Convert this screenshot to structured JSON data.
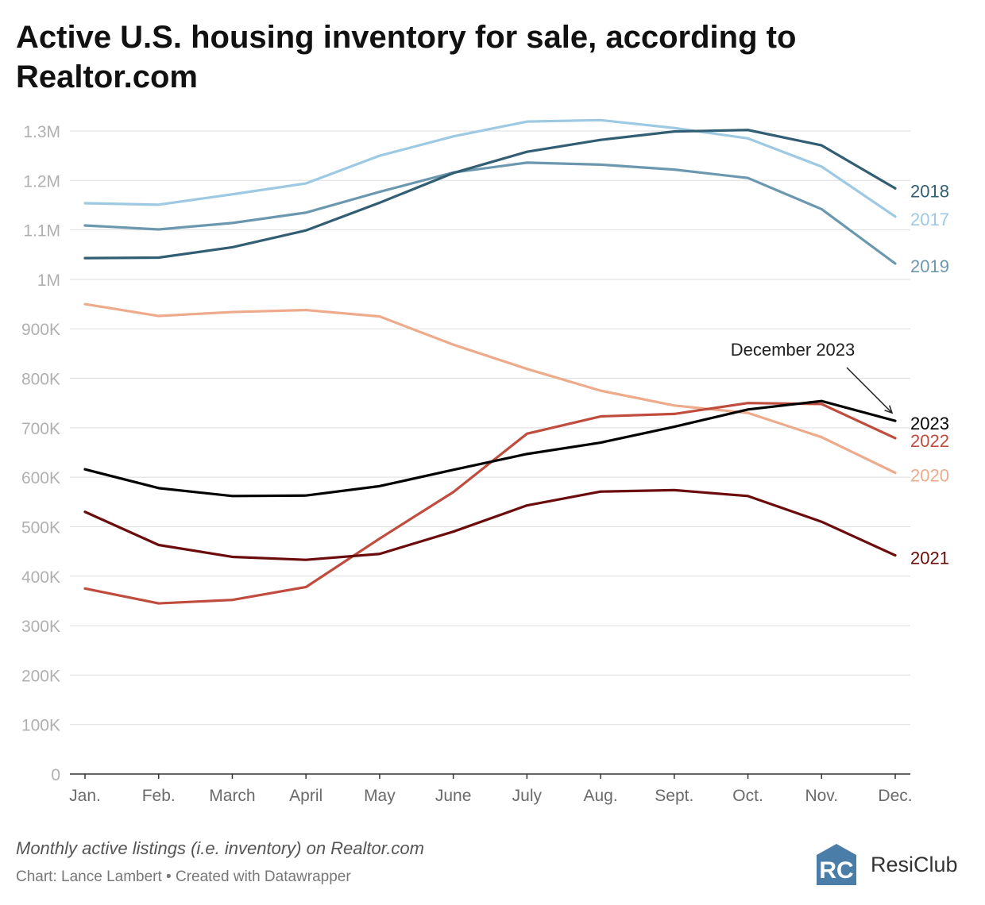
{
  "title": "Active U.S. housing inventory for sale, according to Realtor.com",
  "notes": "Monthly active listings (i.e. inventory) on Realtor.com",
  "credit": "Chart: Lance Lambert • Created with Datawrapper",
  "logo": {
    "mark": "RC",
    "name": "ResiClub",
    "color": "#4a7ea8"
  },
  "chart_data": {
    "type": "line",
    "categories": [
      "Jan.",
      "Feb.",
      "March",
      "April",
      "May",
      "June",
      "July",
      "Aug.",
      "Sept.",
      "Oct.",
      "Nov.",
      "Dec."
    ],
    "ylim": [
      0,
      1300000
    ],
    "yticks": [
      {
        "value": 0,
        "label": "0"
      },
      {
        "value": 100000,
        "label": "100K"
      },
      {
        "value": 200000,
        "label": "200K"
      },
      {
        "value": 300000,
        "label": "300K"
      },
      {
        "value": 400000,
        "label": "400K"
      },
      {
        "value": 500000,
        "label": "500K"
      },
      {
        "value": 600000,
        "label": "600K"
      },
      {
        "value": 700000,
        "label": "700K"
      },
      {
        "value": 800000,
        "label": "800K"
      },
      {
        "value": 900000,
        "label": "900K"
      },
      {
        "value": 1000000,
        "label": "1M"
      },
      {
        "value": 1100000,
        "label": "1.1M"
      },
      {
        "value": 1200000,
        "label": "1.2M"
      },
      {
        "value": 1300000,
        "label": "1.3M"
      }
    ],
    "series": [
      {
        "name": "2017",
        "color": "#9ec9e2",
        "label_offset": 0,
        "values": [
          1154000,
          1151000,
          1172000,
          1194000,
          1250000,
          1289000,
          1319000,
          1322000,
          1306000,
          1285000,
          1228000,
          1127000
        ]
      },
      {
        "name": "2019",
        "color": "#6b98ae",
        "label_offset": 0,
        "values": [
          1109000,
          1101000,
          1114000,
          1135000,
          1177000,
          1216000,
          1236000,
          1232000,
          1222000,
          1205000,
          1142000,
          1032000
        ]
      },
      {
        "name": "2018",
        "color": "#325e73",
        "label_offset": 0,
        "values": [
          1043000,
          1044000,
          1065000,
          1099000,
          1155000,
          1215000,
          1258000,
          1282000,
          1299000,
          1302000,
          1271000,
          1184000
        ]
      },
      {
        "name": "2020",
        "color": "#eeab8c",
        "label_offset": 0,
        "values": [
          950000,
          926000,
          934000,
          938000,
          925000,
          868000,
          819000,
          775000,
          745000,
          730000,
          681000,
          609000
        ]
      },
      {
        "name": "2022",
        "color": "#bf4c3d",
        "label_offset": 0,
        "values": [
          375000,
          345000,
          352000,
          378000,
          476000,
          570000,
          688000,
          723000,
          728000,
          750000,
          748000,
          679000
        ]
      },
      {
        "name": "2021",
        "color": "#6b0b0b",
        "label_offset": 0,
        "values": [
          530000,
          463000,
          439000,
          433000,
          445000,
          490000,
          543000,
          571000,
          574000,
          562000,
          510000,
          442000
        ]
      },
      {
        "name": "2023",
        "color": "#000000",
        "label_offset": 0,
        "values": [
          616000,
          578000,
          562000,
          563000,
          582000,
          615000,
          647000,
          670000,
          702000,
          737000,
          754000,
          714000
        ]
      }
    ],
    "annotation": {
      "text": "December 2023",
      "series": "2023",
      "category": "Dec."
    },
    "xlabel": "",
    "ylabel": "",
    "grid": true,
    "legend": "inline-right"
  }
}
